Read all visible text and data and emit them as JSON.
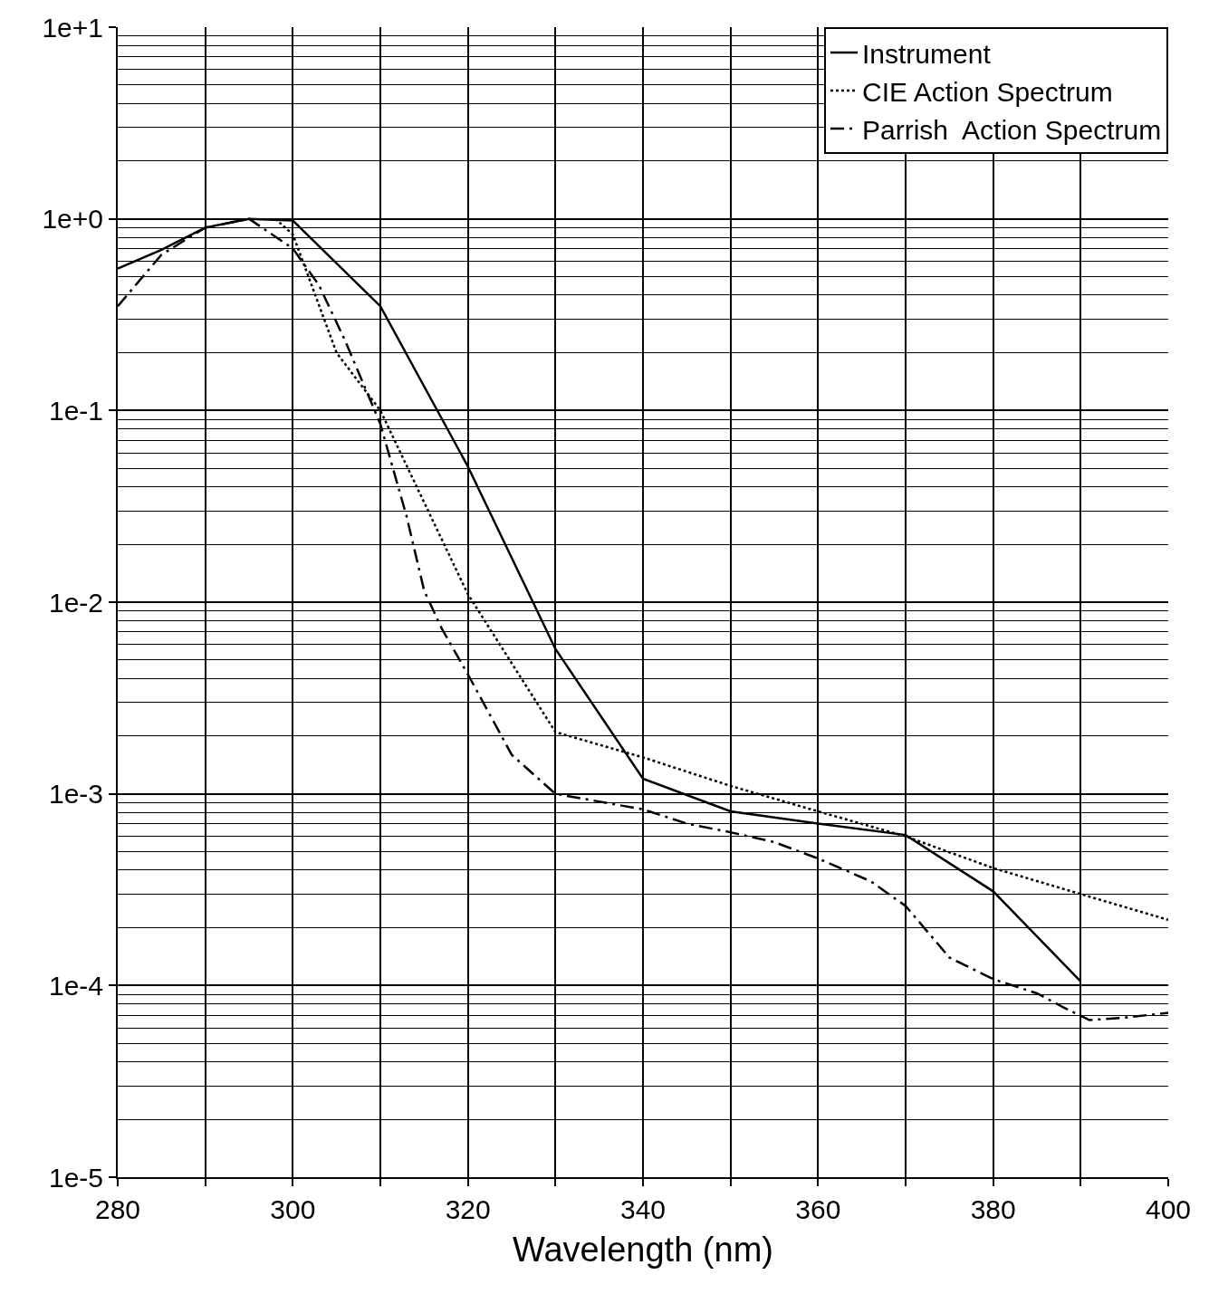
{
  "chart_data": {
    "type": "line",
    "xlabel": "Wavelength (nm)",
    "log": "y",
    "xlim": [
      280,
      400
    ],
    "ylim": [
      1e-05,
      10
    ],
    "xticks": [
      280,
      {
        "value": 290,
        "label": null
      },
      300,
      {
        "value": 310,
        "label": null
      },
      320,
      {
        "value": 330,
        "label": null
      },
      340,
      {
        "value": 350,
        "label": null
      },
      360,
      {
        "value": 370,
        "label": null
      },
      380,
      {
        "value": 390,
        "label": null
      },
      400
    ],
    "yticks": [
      {
        "value": 1e-05,
        "label": "1e-5"
      },
      {
        "value": 0.0001,
        "label": "1e-4"
      },
      {
        "value": 0.001,
        "label": "1e-3"
      },
      {
        "value": 0.01,
        "label": "1e-2"
      },
      {
        "value": 0.1,
        "label": "1e-1"
      },
      {
        "value": 1,
        "label": "1e+0"
      },
      {
        "value": 10,
        "label": "1e+1"
      }
    ],
    "grid": true,
    "legend": "top right",
    "series": [
      {
        "name": "Instrument",
        "color": "#000000",
        "line_style": "solid",
        "x": [
          280,
          285,
          290,
          295,
          300,
          310,
          320,
          330,
          340,
          350,
          360,
          370,
          380,
          390
        ],
        "values": [
          0.55,
          0.69,
          0.9,
          1.0,
          0.98,
          0.35,
          0.051,
          0.0057,
          0.0012,
          0.00081,
          0.0007,
          0.00061,
          0.00031,
          0.000105
        ]
      },
      {
        "name": "CIE Action Spectrum",
        "color": "#000000",
        "line_style": "dotted",
        "x": [
          298,
          300,
          305,
          310,
          320,
          330,
          340,
          350,
          360,
          370,
          380,
          390,
          400
        ],
        "values": [
          1.0,
          0.83,
          0.2,
          0.1,
          0.011,
          0.0021,
          0.00155,
          0.0011,
          0.00081,
          0.0006,
          0.00041,
          0.0003,
          0.00022
        ]
      },
      {
        "name": "Parrish  Action Spectrum",
        "color": "#000000",
        "line_style": "dashed",
        "x": [
          280,
          285,
          290,
          295,
          300,
          303,
          306,
          310,
          313,
          315,
          317,
          320,
          325,
          330,
          340,
          345,
          350,
          355,
          360,
          366,
          370,
          375,
          380,
          385,
          388,
          391,
          395,
          400
        ],
        "values": [
          0.35,
          0.65,
          0.9,
          1.0,
          0.7,
          0.45,
          0.23,
          0.085,
          0.028,
          0.0115,
          0.0073,
          0.0042,
          0.0016,
          0.001,
          0.00083,
          0.0007,
          0.00063,
          0.00056,
          0.00046,
          0.00035,
          0.00026,
          0.00014,
          0.000108,
          9.1e-05,
          7.7e-05,
          6.6e-05,
          6.8e-05,
          7.2e-05
        ]
      }
    ]
  }
}
